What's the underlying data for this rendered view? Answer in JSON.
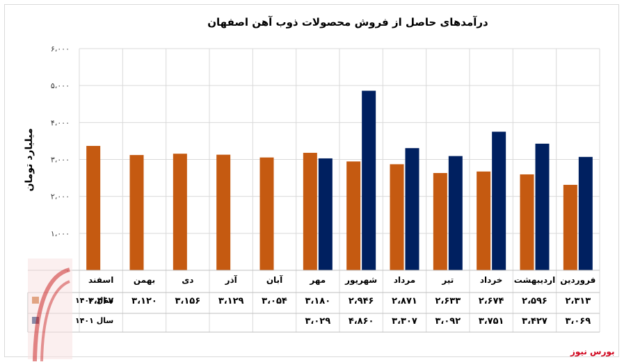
{
  "chart_data": {
    "type": "bar",
    "title": "درآمدهای حاصل از فروش محصولات ذوب آهن اصفهان",
    "ylabel": "میلیارد تومان",
    "ylim": [
      0,
      6000
    ],
    "yticks": [
      "۰",
      "۱،۰۰۰",
      "۲،۰۰۰",
      "۳،۰۰۰",
      "۴،۰۰۰",
      "۵،۰۰۰",
      "۶،۰۰۰"
    ],
    "categories": [
      "فروردین",
      "اردیبهشت",
      "خرداد",
      "تیر",
      "مرداد",
      "شهریور",
      "مهر",
      "آبان",
      "آذر",
      "دی",
      "بهمن",
      "اسفند"
    ],
    "grid": true,
    "legend": "data-table",
    "series": [
      {
        "name": "سال ۱۴۰۰",
        "color": "#c55a11",
        "values": [
          2313,
          2596,
          2674,
          2633,
          2871,
          2946,
          3180,
          3054,
          3129,
          3156,
          3120,
          3367
        ],
        "labels": [
          "۲،۳۱۳",
          "۲،۵۹۶",
          "۲،۶۷۴",
          "۲،۶۳۳",
          "۲،۸۷۱",
          "۲،۹۴۶",
          "۳،۱۸۰",
          "۳،۰۵۴",
          "۳،۱۲۹",
          "۳،۱۵۶",
          "۳،۱۲۰",
          "۳،۳۶۷"
        ]
      },
      {
        "name": "سال ۱۴۰۱",
        "color": "#002060",
        "values": [
          3069,
          3427,
          3751,
          3092,
          3307,
          4860,
          3029,
          null,
          null,
          null,
          null,
          null
        ],
        "labels": [
          "۳،۰۶۹",
          "۳،۴۲۷",
          "۳،۷۵۱",
          "۳،۰۹۲",
          "۳،۳۰۷",
          "۴،۸۶۰",
          "۳،۰۲۹",
          "",
          "",
          "",
          "",
          ""
        ]
      }
    ]
  },
  "watermark": "بورس نیوز"
}
